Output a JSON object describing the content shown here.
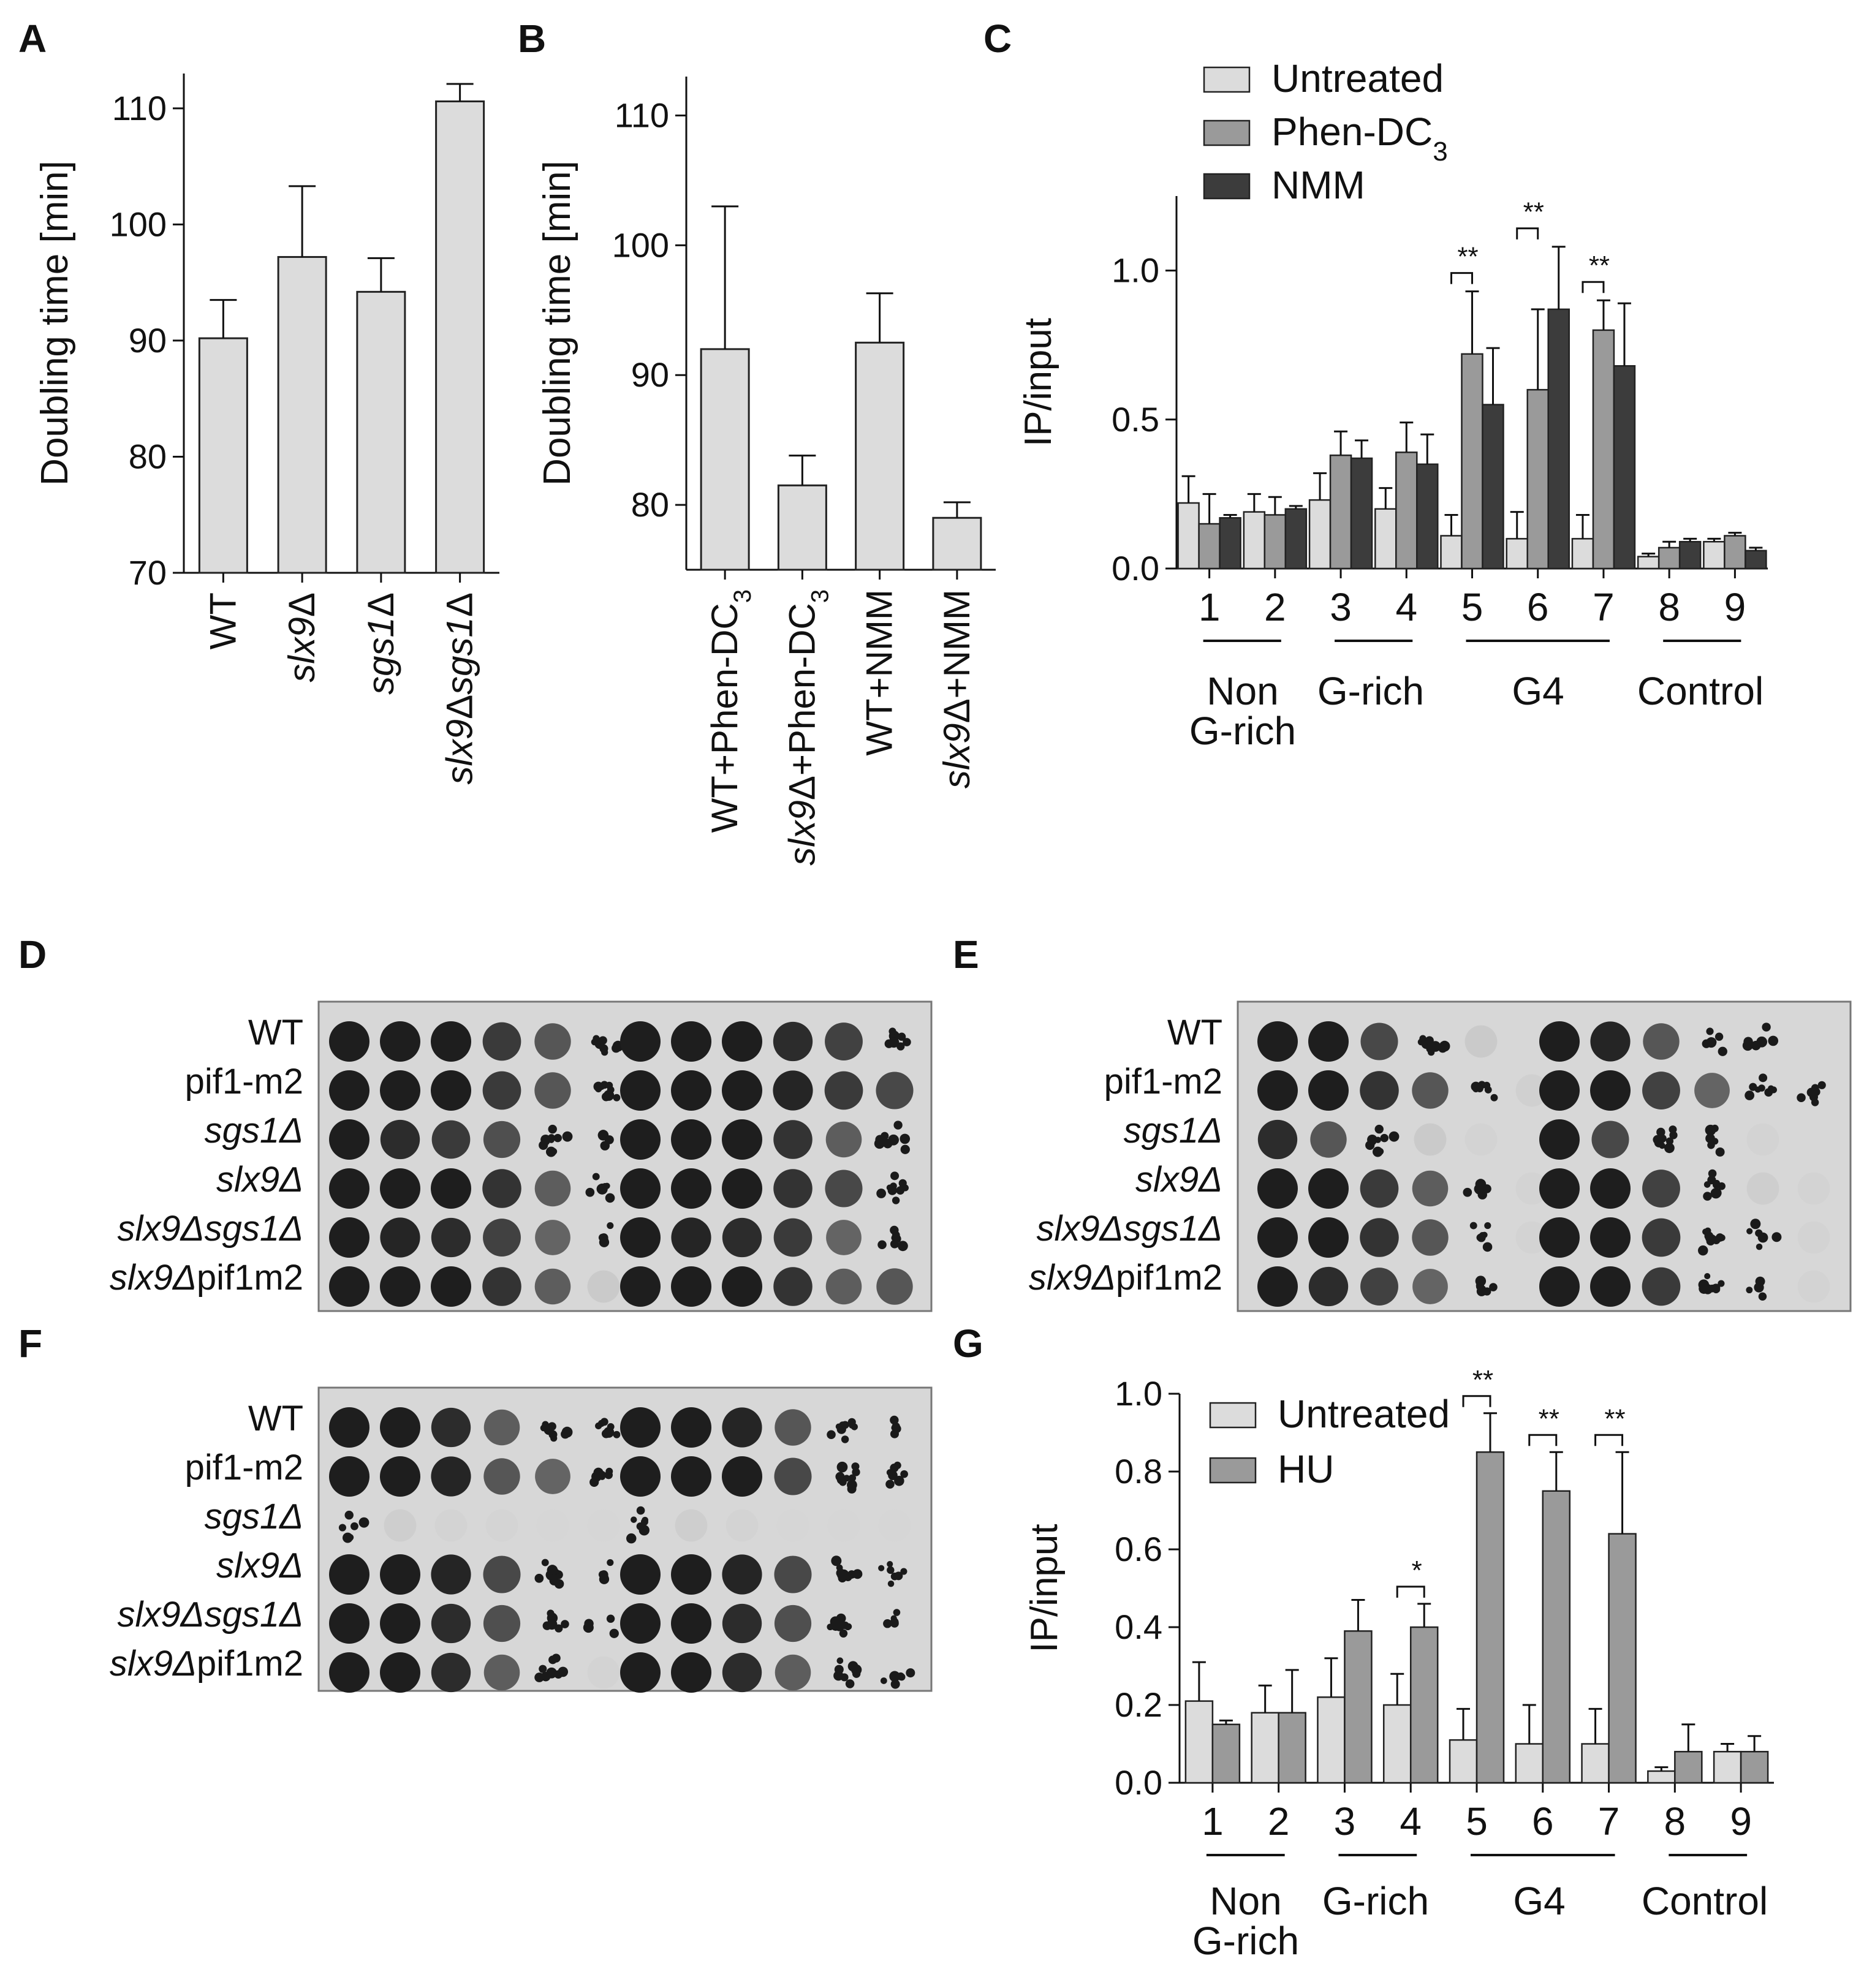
{
  "panel_labels": {
    "A": "A",
    "B": "B",
    "C": "C",
    "D": "D",
    "E": "E",
    "F": "F",
    "G": "G"
  },
  "colors": {
    "untreated": "#dcdcdc",
    "phen": "#9a9a9a",
    "nmm": "#3c3c3c",
    "hu": "#9a9a9a",
    "plate_bg": "#d7d7d7",
    "colony": "#1a1a1a"
  },
  "strains": [
    {
      "italic": "",
      "normal": "WT"
    },
    {
      "italic": "",
      "normal": "pif1-m2"
    },
    {
      "italic": "sgs1Δ",
      "normal": ""
    },
    {
      "italic": "slx9Δ",
      "normal": ""
    },
    {
      "italic": "slx9Δsgs1Δ",
      "normal": ""
    },
    {
      "italic": "slx9Δ",
      "normal": "pif1m2"
    }
  ],
  "groups": {
    "non": "Non",
    "non2": "G-rich",
    "grich": "G-rich",
    "g4": "G4",
    "control": "Control"
  },
  "chart_data": [
    {
      "id": "A",
      "type": "bar",
      "ylabel": "Doubling time [min]",
      "ylim": [
        70,
        113
      ],
      "yticks": [
        70,
        80,
        90,
        100,
        110
      ],
      "categories": [
        {
          "italic": "",
          "normal": "WT"
        },
        {
          "italic": "slx9",
          "normal": "Δ"
        },
        {
          "italic": "sgs1",
          "normal": "Δ"
        },
        {
          "italic": "slx9",
          "normal": "Δ",
          "italic2": "sgs1",
          "normal2": "Δ"
        }
      ],
      "values": [
        90.2,
        97.2,
        94.2,
        110.6
      ],
      "errors": [
        3.3,
        6.1,
        2.9,
        1.5
      ]
    },
    {
      "id": "B",
      "type": "bar",
      "ylabel": "Doubling time [min]",
      "ylim": [
        75,
        113
      ],
      "yticks": [
        80,
        90,
        100,
        110
      ],
      "categories": [
        {
          "italic": "",
          "normal": "WT+Phen-DC",
          "sub": "3"
        },
        {
          "italic": "slx9",
          "normal": "Δ+Phen-DC",
          "sub": "3"
        },
        {
          "italic": "",
          "normal": "WT+NMM"
        },
        {
          "italic": "slx9",
          "normal": "Δ+NMM"
        }
      ],
      "values": [
        92.0,
        81.5,
        92.5,
        79.0
      ],
      "errors": [
        11.0,
        2.3,
        3.8,
        1.2
      ]
    },
    {
      "id": "C",
      "type": "bar",
      "ylabel": "IP/input",
      "ylim": [
        0,
        1.25
      ],
      "yticks": [
        "0.0",
        "0.5",
        "1.0"
      ],
      "categories": [
        "1",
        "2",
        "3",
        "4",
        "5",
        "6",
        "7",
        "8",
        "9"
      ],
      "legend_position": "top-left",
      "series": [
        {
          "name": "Untreated",
          "values": [
            0.22,
            0.19,
            0.23,
            0.2,
            0.11,
            0.1,
            0.1,
            0.04,
            0.09
          ],
          "errors": [
            0.09,
            0.06,
            0.09,
            0.07,
            0.07,
            0.09,
            0.08,
            0.01,
            0.01
          ]
        },
        {
          "name": "Phen-DC",
          "name_sub": "3",
          "values": [
            0.15,
            0.18,
            0.38,
            0.39,
            0.72,
            0.6,
            0.8,
            0.07,
            0.11
          ],
          "errors": [
            0.1,
            0.06,
            0.08,
            0.1,
            0.21,
            0.27,
            0.1,
            0.02,
            0.01
          ]
        },
        {
          "name": "NMM",
          "values": [
            0.17,
            0.2,
            0.37,
            0.35,
            0.55,
            0.87,
            0.68,
            0.09,
            0.06
          ],
          "errors": [
            0.01,
            0.01,
            0.06,
            0.1,
            0.19,
            0.21,
            0.21,
            0.01,
            0.01
          ]
        }
      ],
      "significance": [
        {
          "category": "5",
          "label": "**"
        },
        {
          "category": "6",
          "label": "**"
        },
        {
          "category": "7",
          "label": "**"
        }
      ]
    },
    {
      "id": "G",
      "type": "bar",
      "ylabel": "IP/input",
      "ylim": [
        0,
        1.0
      ],
      "yticks": [
        "0.0",
        "0.2",
        "0.4",
        "0.6",
        "0.8",
        "1.0"
      ],
      "categories": [
        "1",
        "2",
        "3",
        "4",
        "5",
        "6",
        "7",
        "8",
        "9"
      ],
      "legend_position": "top-left",
      "series": [
        {
          "name": "Untreated",
          "values": [
            0.21,
            0.18,
            0.22,
            0.2,
            0.11,
            0.1,
            0.1,
            0.03,
            0.08
          ],
          "errors": [
            0.1,
            0.07,
            0.1,
            0.08,
            0.08,
            0.1,
            0.09,
            0.01,
            0.02
          ]
        },
        {
          "name": "HU",
          "values": [
            0.15,
            0.18,
            0.39,
            0.4,
            0.85,
            0.75,
            0.64,
            0.08,
            0.08
          ],
          "errors": [
            0.01,
            0.11,
            0.08,
            0.06,
            0.1,
            0.1,
            0.21,
            0.07,
            0.04
          ]
        }
      ],
      "significance": [
        {
          "category": "4",
          "label": "*"
        },
        {
          "category": "5",
          "label": "**"
        },
        {
          "category": "6",
          "label": "**"
        },
        {
          "category": "7",
          "label": "**"
        }
      ]
    }
  ],
  "plates": {
    "D": {
      "left": [
        [
          1,
          1,
          1,
          0.8,
          0.6,
          0.35
        ],
        [
          1,
          1,
          1,
          0.8,
          0.6,
          0.4
        ],
        [
          1,
          0.9,
          0.8,
          0.65,
          0.45,
          0.2
        ],
        [
          1,
          1,
          1,
          0.85,
          0.55,
          0.3
        ],
        [
          1,
          0.95,
          0.9,
          0.75,
          0.5,
          0.25
        ],
        [
          1,
          1,
          1,
          0.85,
          0.55,
          0.15
        ]
      ],
      "right": [
        [
          1,
          1,
          1,
          0.9,
          0.75,
          0.45
        ],
        [
          1,
          1,
          1,
          0.95,
          0.8,
          0.7
        ],
        [
          1,
          1,
          1,
          0.85,
          0.55,
          0.35
        ],
        [
          1,
          1,
          1,
          0.85,
          0.7,
          0.45
        ],
        [
          1,
          0.95,
          0.9,
          0.8,
          0.5,
          0.4
        ],
        [
          1,
          1,
          1,
          0.85,
          0.55,
          0.6
        ]
      ]
    },
    "E": {
      "left": [
        [
          1,
          1,
          0.7,
          0.45,
          0.15,
          0
        ],
        [
          1,
          1,
          0.85,
          0.6,
          0.35,
          0.08
        ],
        [
          0.9,
          0.6,
          0.4,
          0.15,
          0.05,
          0
        ],
        [
          1,
          1,
          0.8,
          0.55,
          0.3,
          0.05
        ],
        [
          1,
          1,
          0.85,
          0.6,
          0.3,
          0.05
        ],
        [
          1,
          0.9,
          0.75,
          0.5,
          0.3,
          0
        ]
      ],
      "right": [
        [
          1,
          0.95,
          0.6,
          0.3,
          0.25,
          0
        ],
        [
          1,
          1,
          0.75,
          0.5,
          0.35,
          0.3
        ],
        [
          1,
          0.7,
          0.45,
          0.25,
          0.05,
          0
        ],
        [
          1,
          1,
          0.75,
          0.4,
          0.1,
          0.05
        ],
        [
          1,
          1,
          0.8,
          0.45,
          0.25,
          0.05
        ],
        [
          1,
          1,
          0.8,
          0.45,
          0.2,
          0.05
        ]
      ]
    },
    "F": {
      "left": [
        [
          1,
          1,
          0.9,
          0.55,
          0.35,
          0.3
        ],
        [
          1,
          1,
          0.95,
          0.6,
          0.5,
          0.3
        ],
        [
          0.25,
          0.1,
          0.05,
          0.03,
          0.02,
          0.01
        ],
        [
          1,
          1,
          0.95,
          0.7,
          0.45,
          0.25
        ],
        [
          1,
          1,
          0.9,
          0.65,
          0.4,
          0.2
        ],
        [
          1,
          1,
          0.9,
          0.55,
          0.35,
          0.05
        ]
      ],
      "right": [
        [
          1,
          1,
          0.95,
          0.6,
          0.4,
          0.25
        ],
        [
          1,
          1,
          1,
          0.7,
          0.45,
          0.3
        ],
        [
          0.3,
          0.1,
          0.04,
          0.02,
          0.01,
          0.01
        ],
        [
          1,
          1,
          0.95,
          0.7,
          0.45,
          0.3
        ],
        [
          1,
          1,
          0.9,
          0.65,
          0.45,
          0.3
        ],
        [
          1,
          1,
          0.9,
          0.55,
          0.35,
          0.25
        ]
      ]
    }
  }
}
